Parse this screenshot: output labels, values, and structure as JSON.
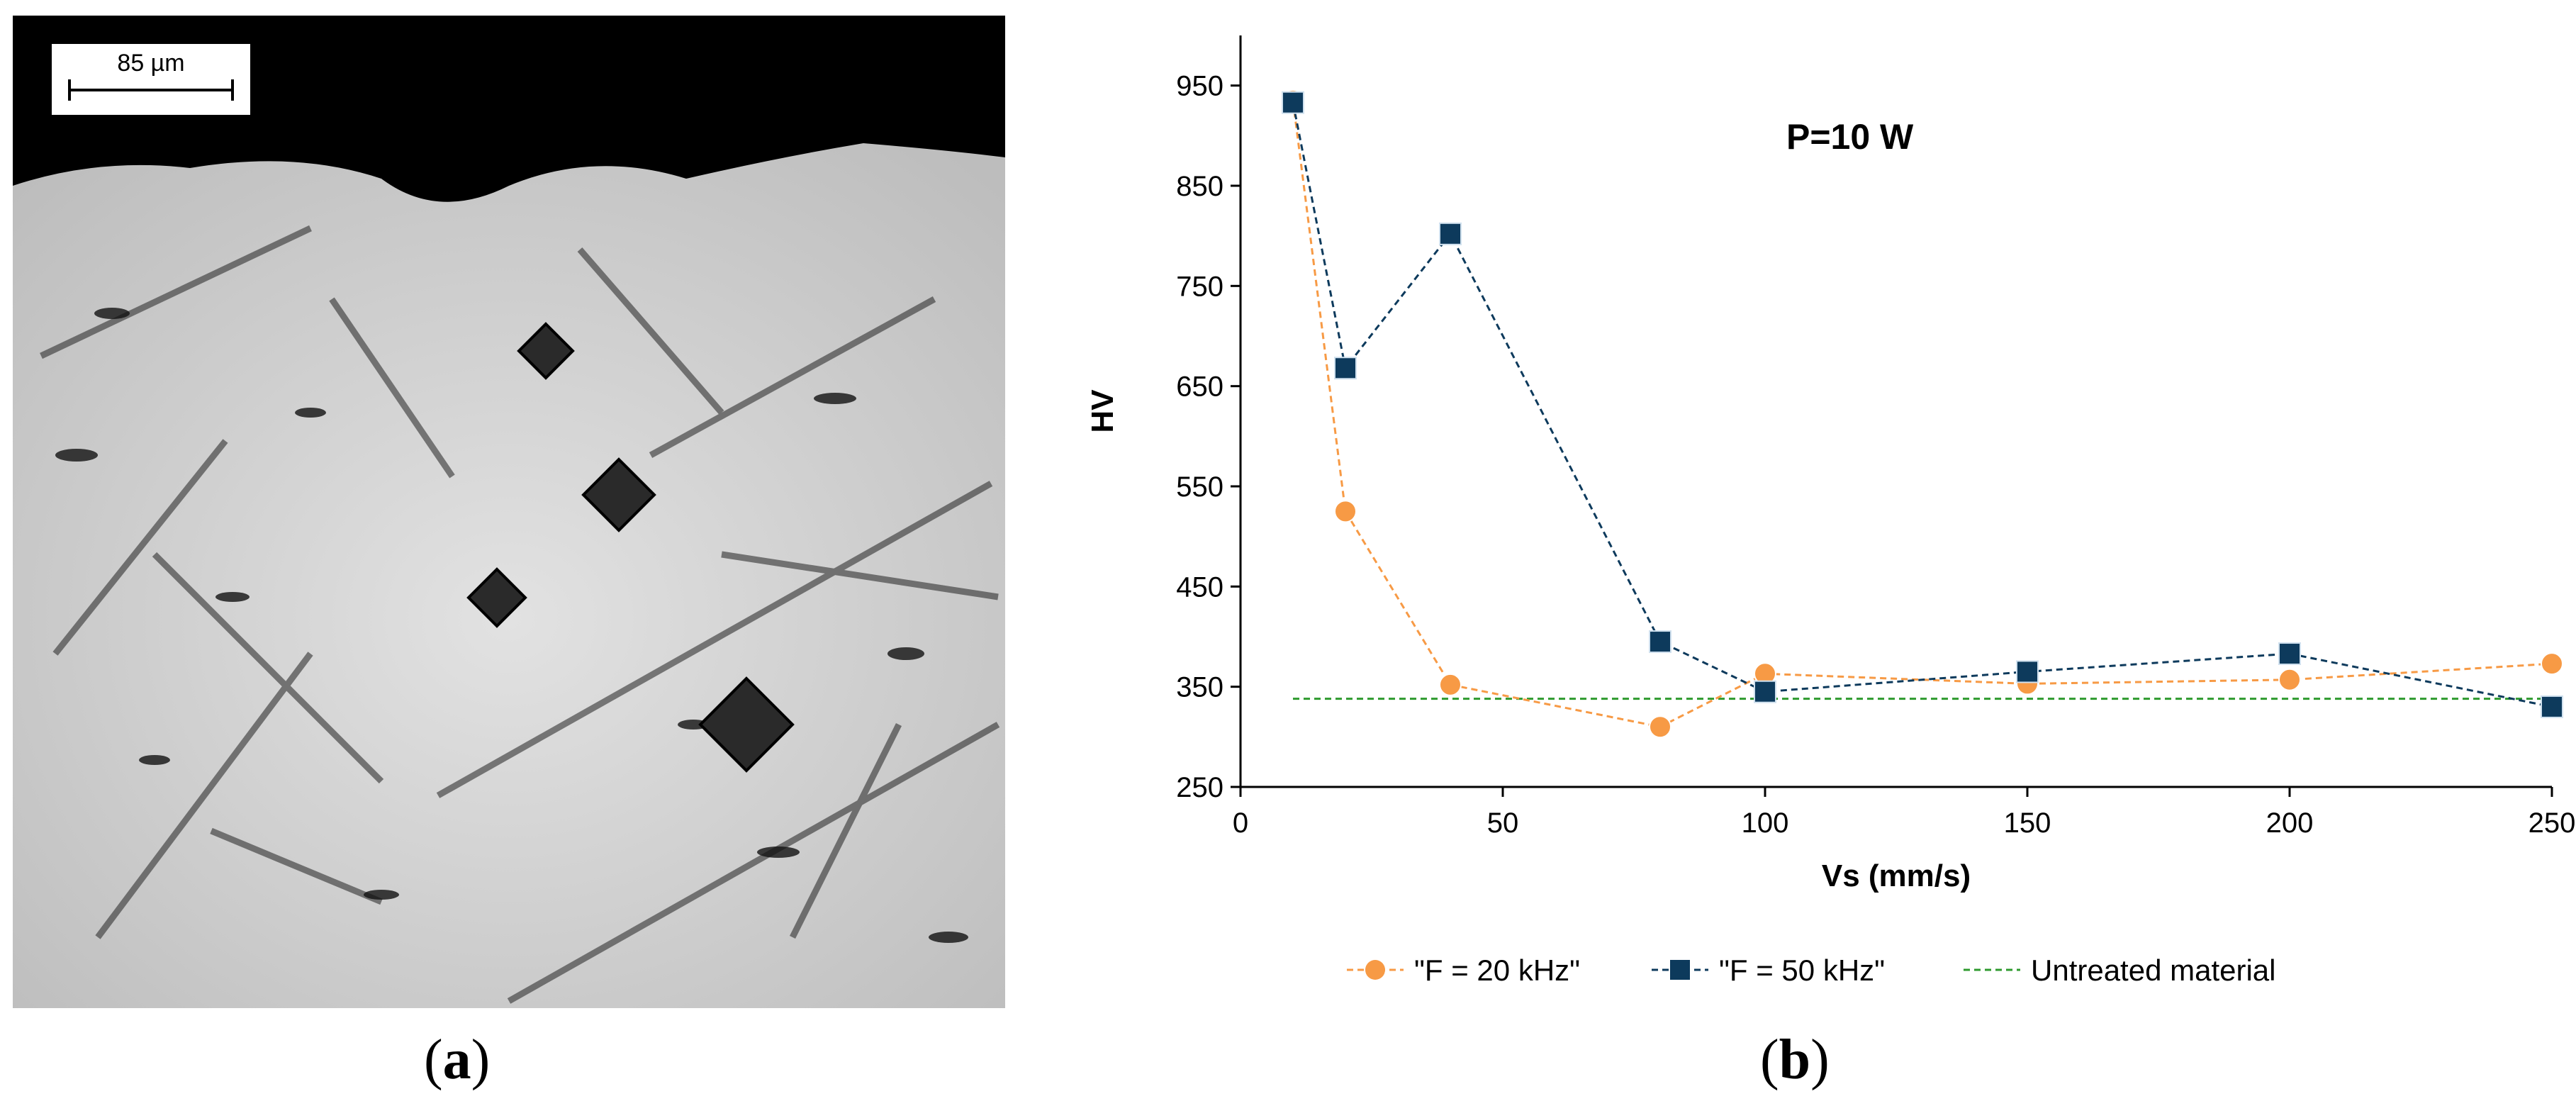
{
  "panel_a": {
    "label": "a",
    "scale_bar_label": "85 µm"
  },
  "panel_b": {
    "label": "b"
  },
  "chart_data": {
    "type": "line",
    "annotation": "P=10 W",
    "xlabel": "Vs (mm/s)",
    "ylabel": "HV",
    "xlim": [
      0,
      250
    ],
    "ylim": [
      250,
      1000
    ],
    "xticks": [
      0,
      50,
      100,
      150,
      200,
      250
    ],
    "yticks": [
      250,
      350,
      450,
      550,
      650,
      750,
      850,
      950
    ],
    "grid": false,
    "legend_position": "bottom",
    "series": [
      {
        "name": "\"F = 20 kHz\"",
        "color": "#f79a45",
        "marker": "circle",
        "line_style": "dashed",
        "x": [
          10,
          20,
          40,
          80,
          100,
          150,
          200,
          250
        ],
        "y": [
          935,
          525,
          352,
          310,
          363,
          353,
          357,
          373
        ]
      },
      {
        "name": "\"F = 50 kHz\"",
        "color": "#0d3a5c",
        "marker": "square",
        "line_style": "dashed",
        "x": [
          10,
          20,
          40,
          80,
          100,
          150,
          200,
          250
        ],
        "y": [
          933,
          668,
          802,
          395,
          345,
          365,
          383,
          330
        ]
      },
      {
        "name": "Untreated material",
        "color": "#2e9a2e",
        "marker": "none",
        "line_style": "dashed",
        "x": [
          10,
          250
        ],
        "y": [
          338,
          338
        ]
      }
    ]
  }
}
